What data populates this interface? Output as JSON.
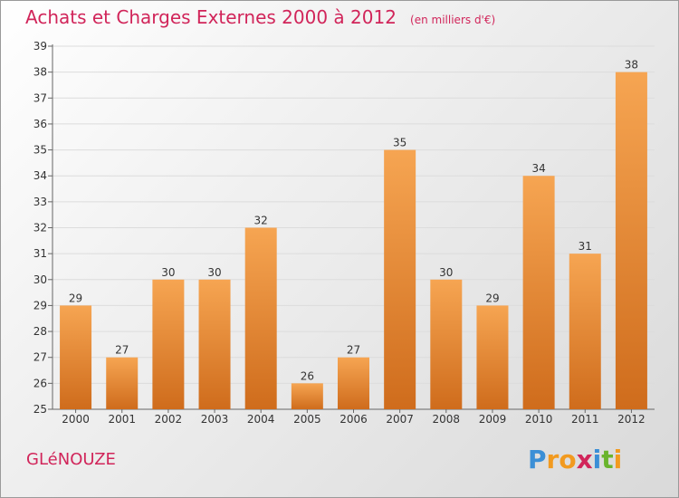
{
  "header": {
    "title": "Achats et Charges Externes 2000 à 2012",
    "unit": "(en milliers d'€)"
  },
  "footer": {
    "commune": "GLéNOUZE",
    "brand_letters": [
      {
        "ch": "P",
        "color": "#3b8fd6"
      },
      {
        "ch": "r",
        "color": "#f29a1f"
      },
      {
        "ch": "o",
        "color": "#f29a1f"
      },
      {
        "ch": "x",
        "color": "#d1255a"
      },
      {
        "ch": "i",
        "color": "#3b8fd6"
      },
      {
        "ch": "t",
        "color": "#6ab42d"
      },
      {
        "ch": "i",
        "color": "#f29a1f"
      }
    ]
  },
  "colors": {
    "accent": "#d1255a",
    "bar_light": "#f6a552",
    "bar_dark": "#cf6c1c"
  },
  "chart_data": {
    "type": "bar",
    "categories": [
      "2000",
      "2001",
      "2002",
      "2003",
      "2004",
      "2005",
      "2006",
      "2007",
      "2008",
      "2009",
      "2010",
      "2011",
      "2012"
    ],
    "values": [
      29,
      27,
      30,
      30,
      32,
      26,
      27,
      35,
      30,
      29,
      34,
      31,
      38
    ],
    "title": "Achats et Charges Externes 2000 à 2012",
    "ylim": [
      25,
      39
    ],
    "yticks": [
      25,
      26,
      27,
      28,
      29,
      30,
      31,
      32,
      33,
      34,
      35,
      36,
      37,
      38,
      39
    ],
    "grid": true,
    "data_labels": true
  }
}
